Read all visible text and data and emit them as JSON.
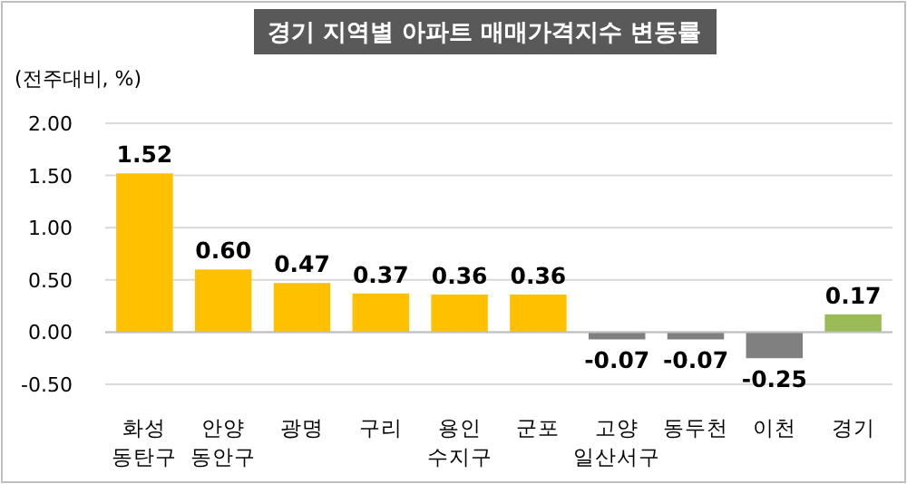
{
  "chart_data": {
    "type": "bar",
    "title": "경기 지역별 아파트 매매가격지수 변동률",
    "ylabel": "(전주대비, %)",
    "categories": [
      "화성 동탄구",
      "안양 동안구",
      "광명",
      "구리",
      "용인 수지구",
      "군포",
      "고양 일산서구",
      "동두천",
      "이천",
      "경기"
    ],
    "values": [
      1.52,
      0.6,
      0.47,
      0.37,
      0.36,
      0.36,
      -0.07,
      -0.07,
      -0.25,
      0.17
    ],
    "colors": [
      "#ffc000",
      "#ffc000",
      "#ffc000",
      "#ffc000",
      "#ffc000",
      "#ffc000",
      "#808080",
      "#808080",
      "#808080",
      "#9bbb59"
    ],
    "ylim": [
      -0.5,
      2.0
    ],
    "yticks": [
      {
        "value": -0.5,
        "label": "-0.50"
      },
      {
        "value": 0,
        "label": "0.00"
      },
      {
        "value": 0.5,
        "label": "0.50"
      },
      {
        "value": 1.0,
        "label": "1.00"
      },
      {
        "value": 1.5,
        "label": "1.50"
      },
      {
        "value": 2.0,
        "label": "2.00"
      }
    ],
    "value_labels": [
      "1.52",
      "0.60",
      "0.47",
      "0.37",
      "0.36",
      "0.36",
      "-0.07",
      "-0.07",
      "-0.25",
      "0.17"
    ],
    "grid": "y"
  }
}
